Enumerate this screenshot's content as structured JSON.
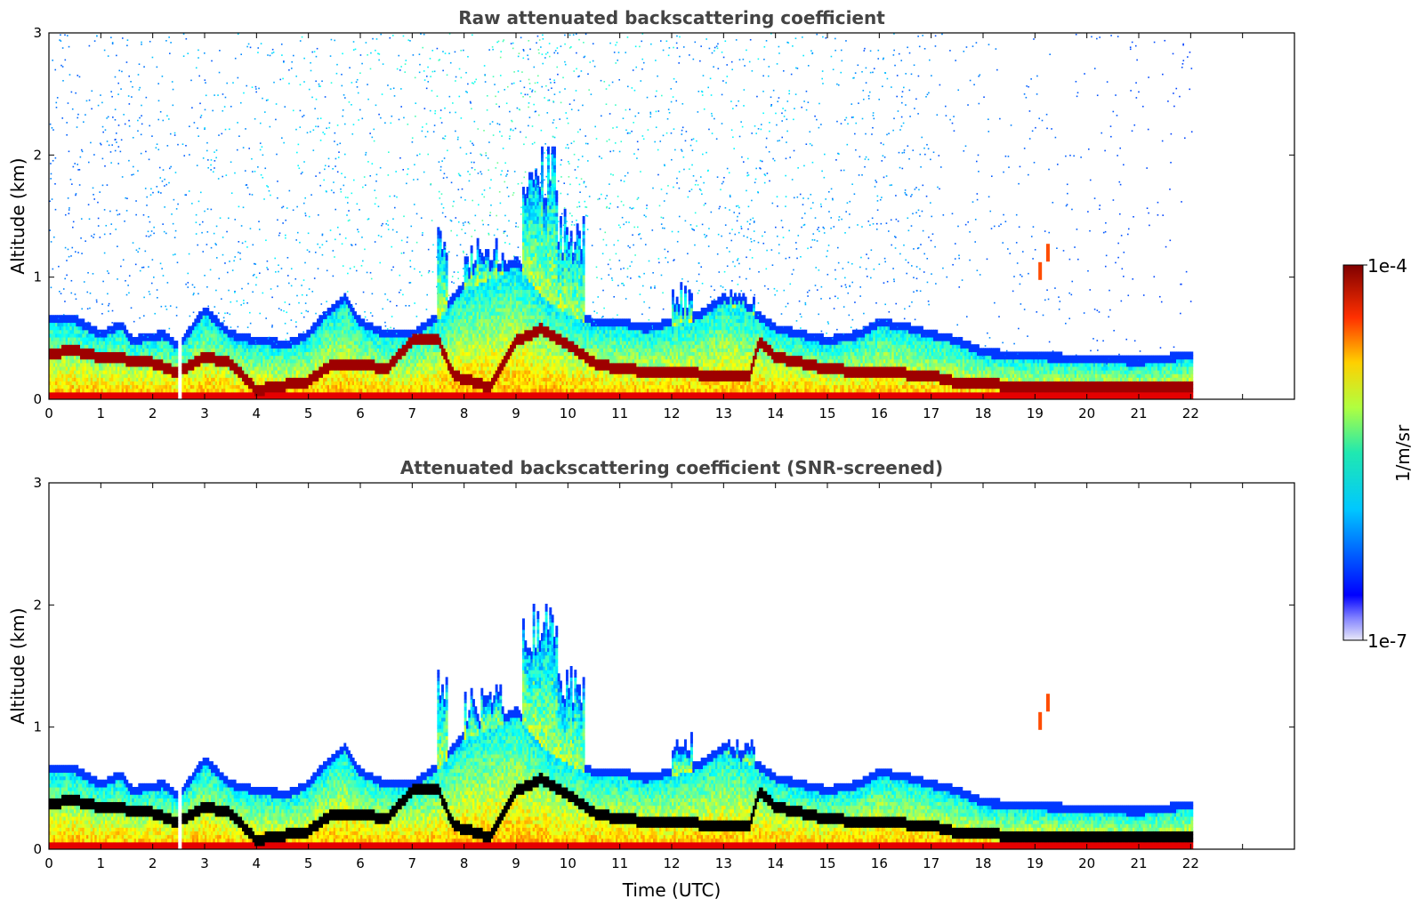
{
  "colors": {
    "colormap": "jet",
    "frame": "#000000",
    "title": "#444444",
    "high_backscatter_screened": "#000000",
    "background": "#ffffff"
  },
  "chart_data": [
    {
      "type": "heatmap",
      "title": "Raw attenuated backscattering coefficient",
      "xlabel": "",
      "ylabel": "Altitude (km)",
      "xlim": [
        0,
        24
      ],
      "ylim": [
        0,
        3
      ],
      "x_ticks": [
        0,
        1,
        2,
        3,
        4,
        5,
        6,
        7,
        8,
        9,
        10,
        11,
        12,
        13,
        14,
        15,
        16,
        17,
        18,
        19,
        20,
        21,
        22
      ],
      "x_tick_labels": [
        "0",
        "1",
        "2",
        "3",
        "4",
        "5",
        "6",
        "7",
        "8",
        "9",
        "10",
        "11",
        "12",
        "13",
        "14",
        "15",
        "16",
        "17",
        "18",
        "19",
        "20",
        "21",
        "22"
      ],
      "y_ticks": [
        0,
        1,
        2,
        3
      ],
      "y_tick_labels": [
        "0",
        "1",
        "2",
        "3"
      ],
      "data_extent_hours": [
        0,
        22
      ],
      "screened": false,
      "boundary_layer_top_km": [
        [
          0,
          0.62
        ],
        [
          0.5,
          0.62
        ],
        [
          1,
          0.5
        ],
        [
          1.4,
          0.58
        ],
        [
          1.6,
          0.45
        ],
        [
          2.2,
          0.5
        ],
        [
          2.5,
          0.4
        ],
        [
          3,
          0.7
        ],
        [
          3.5,
          0.5
        ],
        [
          4,
          0.45
        ],
        [
          4.6,
          0.42
        ],
        [
          5,
          0.5
        ],
        [
          5.3,
          0.65
        ],
        [
          5.7,
          0.8
        ],
        [
          6,
          0.6
        ],
        [
          6.5,
          0.5
        ],
        [
          7,
          0.5
        ],
        [
          7.5,
          0.65
        ],
        [
          8,
          0.9
        ],
        [
          8.6,
          1.0
        ],
        [
          9,
          1.1
        ],
        [
          9.6,
          0.8
        ],
        [
          10,
          0.7
        ],
        [
          10.5,
          0.6
        ],
        [
          11,
          0.6
        ],
        [
          11.5,
          0.55
        ],
        [
          12,
          0.6
        ],
        [
          12.5,
          0.65
        ],
        [
          13,
          0.8
        ],
        [
          13.5,
          0.7
        ],
        [
          14,
          0.55
        ],
        [
          15,
          0.45
        ],
        [
          15.6,
          0.5
        ],
        [
          16,
          0.6
        ],
        [
          16.6,
          0.55
        ],
        [
          17,
          0.5
        ],
        [
          17.5,
          0.45
        ],
        [
          18,
          0.35
        ],
        [
          19,
          0.32
        ],
        [
          20,
          0.3
        ],
        [
          21,
          0.28
        ],
        [
          22,
          0.33
        ]
      ],
      "max_layer_km": [
        [
          0,
          0.38
        ],
        [
          0.5,
          0.4
        ],
        [
          1,
          0.35
        ],
        [
          1.5,
          0.33
        ],
        [
          2,
          0.3
        ],
        [
          2.5,
          0.22
        ],
        [
          3,
          0.35
        ],
        [
          3.5,
          0.3
        ],
        [
          4,
          0.08
        ],
        [
          5,
          0.15
        ],
        [
          5.5,
          0.3
        ],
        [
          6,
          0.3
        ],
        [
          6.5,
          0.25
        ],
        [
          7,
          0.48
        ],
        [
          7.5,
          0.5
        ],
        [
          7.8,
          0.2
        ],
        [
          8.5,
          0.1
        ],
        [
          9,
          0.48
        ],
        [
          9.5,
          0.58
        ],
        [
          10,
          0.45
        ],
        [
          10.5,
          0.3
        ],
        [
          11,
          0.25
        ],
        [
          12,
          0.22
        ],
        [
          13,
          0.2
        ],
        [
          13.5,
          0.2
        ],
        [
          13.7,
          0.48
        ],
        [
          14,
          0.35
        ],
        [
          15,
          0.25
        ],
        [
          16,
          0.22
        ],
        [
          17,
          0.2
        ],
        [
          17.4,
          0.15
        ],
        [
          18,
          0.13
        ],
        [
          19,
          0.1
        ],
        [
          20,
          0.1
        ],
        [
          21,
          0.1
        ],
        [
          22,
          0.1
        ]
      ],
      "convective_plumes": [
        {
          "start_h": 7.5,
          "end_h": 7.7,
          "top_km": 1.5
        },
        {
          "start_h": 8.0,
          "end_h": 8.8,
          "top_km": 1.3
        },
        {
          "start_h": 9.1,
          "end_h": 9.8,
          "top_km": 2.05
        },
        {
          "start_h": 9.8,
          "end_h": 10.3,
          "top_km": 1.5
        },
        {
          "start_h": 12.0,
          "end_h": 12.4,
          "top_km": 0.9
        },
        {
          "start_h": 13.0,
          "end_h": 13.6,
          "top_km": 0.85
        }
      ],
      "isolated_cloud_features": [
        {
          "time_h": 19.1,
          "altitude_km": 1.05
        },
        {
          "time_h": 19.25,
          "altitude_km": 1.2
        }
      ],
      "data_gap_hours": [
        2.47,
        2.58
      ]
    },
    {
      "type": "heatmap",
      "title": "Attenuated backscattering coefficient (SNR-screened)",
      "xlabel": "Time (UTC)",
      "ylabel": "Altitude (km)",
      "xlim": [
        0,
        24
      ],
      "ylim": [
        0,
        3
      ],
      "x_ticks": [
        0,
        1,
        2,
        3,
        4,
        5,
        6,
        7,
        8,
        9,
        10,
        11,
        12,
        13,
        14,
        15,
        16,
        17,
        18,
        19,
        20,
        21,
        22
      ],
      "x_tick_labels": [
        "0",
        "1",
        "2",
        "3",
        "4",
        "5",
        "6",
        "7",
        "8",
        "9",
        "10",
        "11",
        "12",
        "13",
        "14",
        "15",
        "16",
        "17",
        "18",
        "19",
        "20",
        "21",
        "22"
      ],
      "y_ticks": [
        0,
        1,
        2,
        3
      ],
      "y_tick_labels": [
        "0",
        "1",
        "2",
        "3"
      ],
      "data_extent_hours": [
        0,
        22
      ],
      "screened": true,
      "saturated_color": "black"
    }
  ],
  "colorbar": {
    "label": "1/m/sr",
    "max_label": "1e-4",
    "min_label": "1e-7",
    "min_value": 1e-07,
    "max_value": 0.0001,
    "scale": "log",
    "colormap": "jet"
  }
}
